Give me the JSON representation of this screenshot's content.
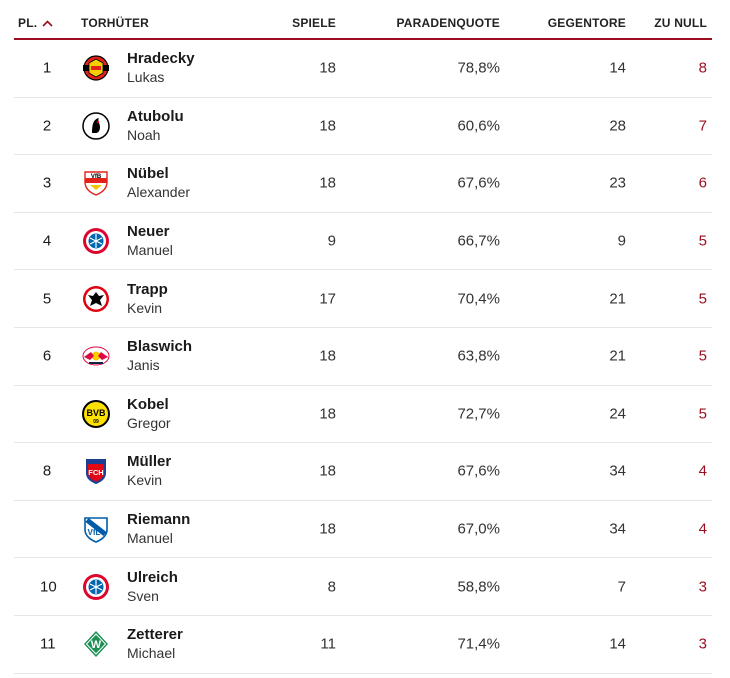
{
  "header": {
    "rank": "PL.",
    "keeper": "TORHÜTER",
    "games": "SPIELE",
    "save_pct": "PARADENQUOTE",
    "conceded": "GEGENTORE",
    "clean_sheets": "ZU NULL"
  },
  "colors": {
    "accent": "#9b0d1f",
    "divider": "#e6e6e6"
  },
  "rows": [
    {
      "rank": "1",
      "last": "Hradecky",
      "first": "Lukas",
      "club_icon": "leverkusen-crest-icon",
      "games": "18",
      "save_pct": "78,8%",
      "conceded": "14",
      "clean": "8"
    },
    {
      "rank": "2",
      "last": "Atubolu",
      "first": "Noah",
      "club_icon": "freiburg-crest-icon",
      "games": "18",
      "save_pct": "60,6%",
      "conceded": "28",
      "clean": "7"
    },
    {
      "rank": "3",
      "last": "Nübel",
      "first": "Alexander",
      "club_icon": "stuttgart-crest-icon",
      "games": "18",
      "save_pct": "67,6%",
      "conceded": "23",
      "clean": "6"
    },
    {
      "rank": "4",
      "last": "Neuer",
      "first": "Manuel",
      "club_icon": "bayern-crest-icon",
      "games": "9",
      "save_pct": "66,7%",
      "conceded": "9",
      "clean": "5"
    },
    {
      "rank": "5",
      "last": "Trapp",
      "first": "Kevin",
      "club_icon": "frankfurt-crest-icon",
      "games": "17",
      "save_pct": "70,4%",
      "conceded": "21",
      "clean": "5"
    },
    {
      "rank": "6",
      "last": "Blaswich",
      "first": "Janis",
      "club_icon": "leipzig-crest-icon",
      "games": "18",
      "save_pct": "63,8%",
      "conceded": "21",
      "clean": "5"
    },
    {
      "rank": "",
      "last": "Kobel",
      "first": "Gregor",
      "club_icon": "dortmund-crest-icon",
      "games": "18",
      "save_pct": "72,7%",
      "conceded": "24",
      "clean": "5"
    },
    {
      "rank": "8",
      "last": "Müller",
      "first": "Kevin",
      "club_icon": "heidenheim-crest-icon",
      "games": "18",
      "save_pct": "67,6%",
      "conceded": "34",
      "clean": "4"
    },
    {
      "rank": "",
      "last": "Riemann",
      "first": "Manuel",
      "club_icon": "bochum-crest-icon",
      "games": "18",
      "save_pct": "67,0%",
      "conceded": "34",
      "clean": "4"
    },
    {
      "rank": "10",
      "last": "Ulreich",
      "first": "Sven",
      "club_icon": "bayern-crest-icon",
      "games": "8",
      "save_pct": "58,8%",
      "conceded": "7",
      "clean": "3"
    },
    {
      "rank": "11",
      "last": "Zetterer",
      "first": "Michael",
      "club_icon": "bremen-crest-icon",
      "games": "11",
      "save_pct": "71,4%",
      "conceded": "14",
      "clean": "3"
    }
  ]
}
